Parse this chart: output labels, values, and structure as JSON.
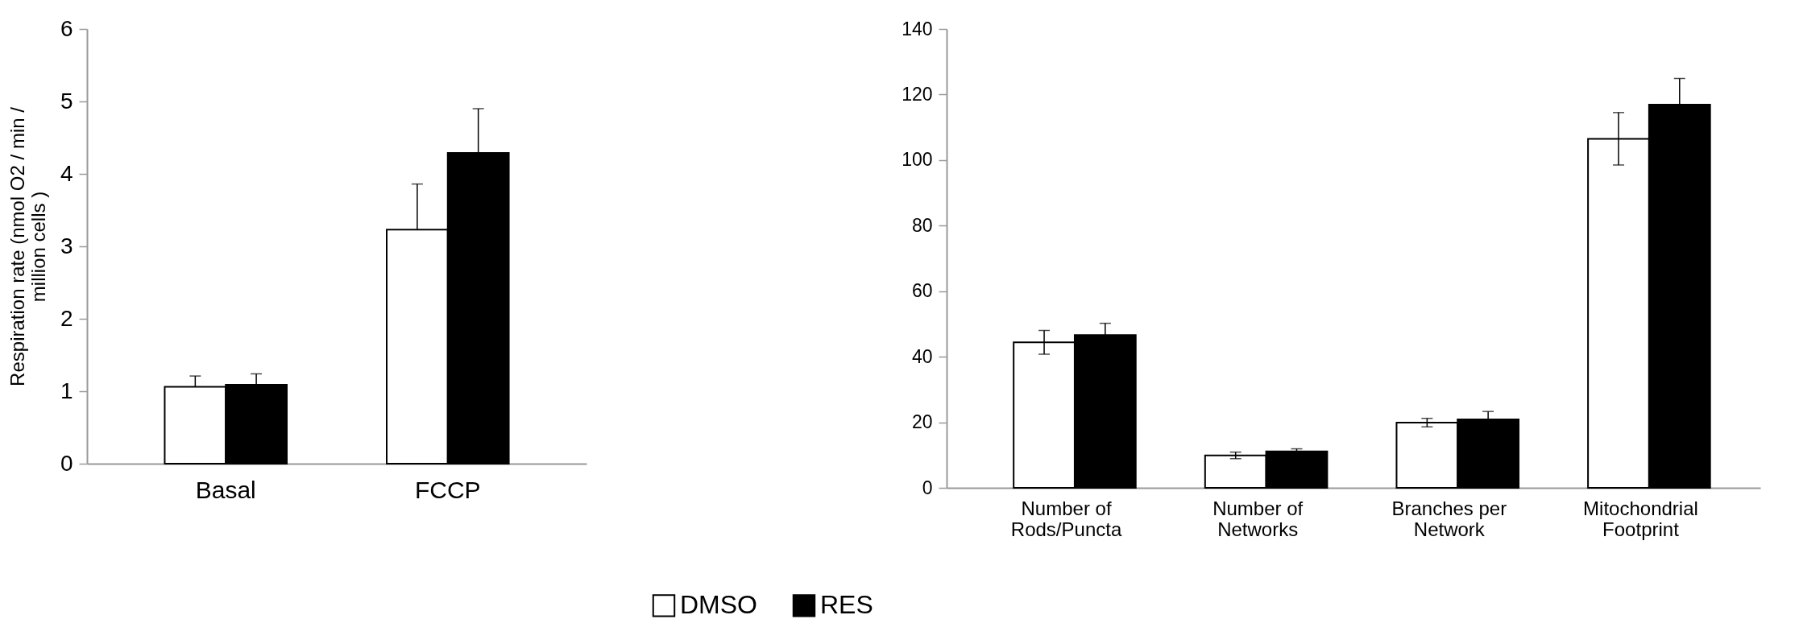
{
  "chart_data": [
    {
      "type": "bar",
      "ylabel": "Respiration rate (nmol O2 / min / million cells )",
      "categories": [
        "Basal",
        "FCCP"
      ],
      "series": [
        {
          "name": "DMSO",
          "color": "#ffffff",
          "values": [
            1.06,
            3.23
          ],
          "errors": [
            [
              1.06,
              1.21
            ],
            [
              3.23,
              3.86
            ]
          ]
        },
        {
          "name": "RES",
          "color": "#000000",
          "values": [
            1.09,
            4.29
          ],
          "errors": [
            [
              1.09,
              1.24
            ],
            [
              4.29,
              4.9
            ]
          ]
        }
      ],
      "ylim": [
        0,
        6
      ],
      "yticks": [
        0,
        1,
        2,
        3,
        4,
        5,
        6
      ],
      "grid": false,
      "legend": "bottom"
    },
    {
      "type": "bar",
      "categories": [
        "Number of Rods/Puncta",
        "Number of Networks",
        "Branches per Network",
        "Mitochondrial Footprint"
      ],
      "series": [
        {
          "name": "DMSO",
          "color": "#ffffff",
          "values": [
            44.4,
            9.9,
            19.9,
            106.5
          ],
          "errors": [
            3.6,
            1,
            1.3,
            8
          ]
        },
        {
          "name": "RES",
          "color": "#000000",
          "values": [
            46.6,
            11.1,
            20.9,
            116.9
          ],
          "errors": [
            3.6,
            0.8,
            2.4,
            8
          ]
        }
      ],
      "ylim": [
        0,
        140
      ],
      "yticks": [
        0,
        20,
        40,
        60,
        80,
        100,
        120,
        140
      ],
      "grid": false,
      "legend": "bottom"
    }
  ]
}
